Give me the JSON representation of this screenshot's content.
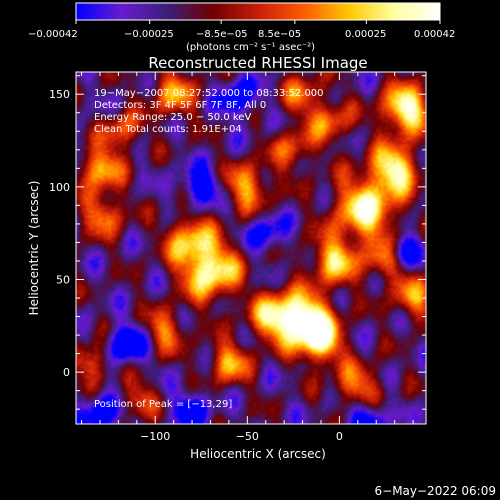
{
  "chart_data": {
    "type": "heatmap",
    "title": "Reconstructed RHESSI Image",
    "xlabel": "Heliocentric X (arcsec)",
    "ylabel": "Heliocentric Y (arcsec)",
    "xlim": [
      -143,
      47
    ],
    "ylim": [
      -28,
      162
    ],
    "x_ticks": [
      -100,
      -50,
      0
    ],
    "x_tick_labels": [
      "−100",
      "−50",
      "0"
    ],
    "y_ticks": [
      0,
      50,
      100,
      150
    ],
    "y_tick_labels": [
      "0",
      "50",
      "100",
      "150"
    ],
    "colorbar": {
      "range": [
        -0.00042,
        0.00042
      ],
      "ticks": [
        -0.00042,
        -0.00025,
        -8.5e-05,
        8.5e-05,
        0.00025,
        0.00042
      ],
      "tick_labels": [
        "−0.00042",
        "−0.00025",
        "−8.5e−05",
        "8.5e−05",
        "0.00025",
        "0.00042"
      ],
      "unit_label": "(photons cm⁻² s⁻¹ asec⁻²)",
      "colors": [
        "#0000ff",
        "#6a1ad0",
        "#3c1e7a",
        "#6e0000",
        "#c81e0a",
        "#ff5a00",
        "#ffc800",
        "#ffffa0",
        "#ffffff"
      ]
    },
    "annotations": [
      "19−May−2007 08:27:52.000 to 08:33:52.000",
      "Detectors: 3F 4F 5F 6F 7F 8F, All 0",
      "Energy Range: 25.0 − 50.0 keV",
      "Clean     Total counts: 1.91E+04"
    ],
    "peak_label": "Position of Peak = [−13,29]",
    "peak_position": [
      -13,
      29
    ],
    "sources": [
      {
        "x": -18,
        "y": 28,
        "amp": 1.0,
        "s": 10
      },
      {
        "x": -10,
        "y": 16,
        "amp": 0.75,
        "s": 8
      },
      {
        "x": -70,
        "y": 55,
        "amp": 0.9,
        "s": 11
      },
      {
        "x": -82,
        "y": 72,
        "amp": 0.6,
        "s": 9
      },
      {
        "x": 36,
        "y": 142,
        "amp": 0.95,
        "s": 9
      },
      {
        "x": 30,
        "y": 110,
        "amp": 0.85,
        "s": 9
      },
      {
        "x": 14,
        "y": 88,
        "amp": 0.85,
        "s": 12
      },
      {
        "x": -3,
        "y": 60,
        "amp": 0.7,
        "s": 9
      },
      {
        "x": -35,
        "y": 30,
        "amp": 0.75,
        "s": 9
      },
      {
        "x": -130,
        "y": 110,
        "amp": 0.7,
        "s": 8
      },
      {
        "x": -128,
        "y": 85,
        "amp": 0.55,
        "s": 8
      },
      {
        "x": -118,
        "y": 130,
        "amp": 0.5,
        "s": 7
      },
      {
        "x": -50,
        "y": 100,
        "amp": 0.6,
        "s": 9
      },
      {
        "x": -95,
        "y": 22,
        "amp": 0.5,
        "s": 8
      },
      {
        "x": -60,
        "y": 5,
        "amp": 0.6,
        "s": 8
      },
      {
        "x": 10,
        "y": -8,
        "amp": 0.55,
        "s": 9
      },
      {
        "x": -90,
        "y": 150,
        "amp": 0.55,
        "s": 9
      },
      {
        "x": -20,
        "y": 150,
        "amp": 0.45,
        "s": 8
      },
      {
        "x": 40,
        "y": 40,
        "amp": 0.55,
        "s": 8
      },
      {
        "x": 25,
        "y": 60,
        "amp": 0.5,
        "s": 8
      },
      {
        "x": -135,
        "y": 5,
        "amp": 0.5,
        "s": 7
      },
      {
        "x": -110,
        "y": -15,
        "amp": 0.45,
        "s": 7
      },
      {
        "x": -25,
        "y": 120,
        "amp": 0.45,
        "s": 8
      },
      {
        "x": -5,
        "y": 135,
        "amp": 0.5,
        "s": 8
      },
      {
        "x": -115,
        "y": 15,
        "amp": -0.7,
        "s": 7
      },
      {
        "x": -75,
        "y": 100,
        "amp": -0.6,
        "s": 7
      },
      {
        "x": 35,
        "y": 65,
        "amp": -0.65,
        "s": 6
      },
      {
        "x": -128,
        "y": -22,
        "amp": -0.6,
        "s": 7
      },
      {
        "x": -80,
        "y": -20,
        "amp": -0.5,
        "s": 7
      },
      {
        "x": -55,
        "y": 148,
        "amp": -0.55,
        "s": 7
      },
      {
        "x": -40,
        "y": 75,
        "amp": -0.45,
        "s": 7
      },
      {
        "x": 15,
        "y": -25,
        "amp": -0.6,
        "s": 7
      }
    ]
  },
  "footer_timestamp": "6−May−2022 06:09"
}
